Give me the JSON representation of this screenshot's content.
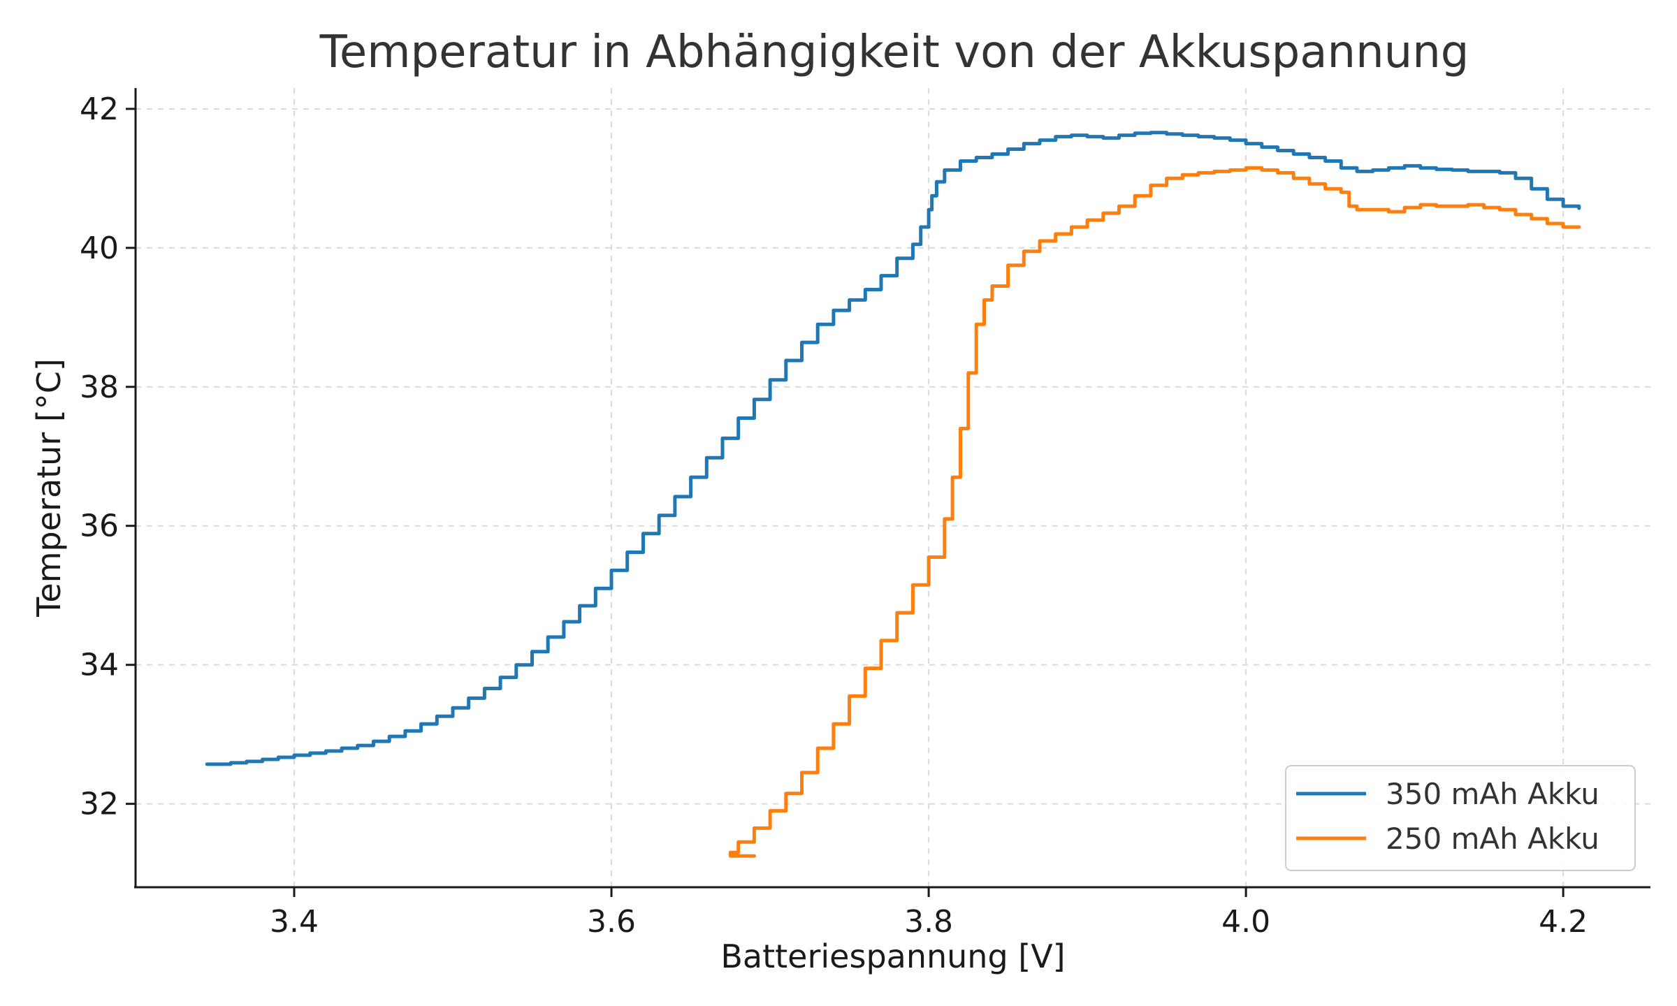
{
  "chart_data": {
    "type": "line",
    "title": "Temperatur in Abhängigkeit von der Akkuspannung",
    "xlabel": "Batteriespannung [V]",
    "ylabel": "Temperatur [°C]",
    "xlim": [
      3.3,
      4.255
    ],
    "ylim": [
      30.8,
      42.3
    ],
    "xticks": [
      3.4,
      3.6,
      3.8,
      4.0,
      4.2
    ],
    "xtick_labels": [
      "3.4",
      "3.6",
      "3.8",
      "4.0",
      "4.2"
    ],
    "yticks": [
      32,
      34,
      36,
      38,
      40,
      42
    ],
    "ytick_labels": [
      "32",
      "34",
      "36",
      "38",
      "40",
      "42"
    ],
    "grid": true,
    "legend_position": "bottom-right",
    "series": [
      {
        "name": "350 mAh Akku",
        "color": "#1f77b4",
        "x": [
          3.345,
          3.36,
          3.37,
          3.38,
          3.39,
          3.4,
          3.41,
          3.42,
          3.43,
          3.44,
          3.45,
          3.46,
          3.47,
          3.48,
          3.49,
          3.5,
          3.51,
          3.52,
          3.53,
          3.54,
          3.55,
          3.56,
          3.57,
          3.58,
          3.59,
          3.6,
          3.61,
          3.62,
          3.63,
          3.64,
          3.65,
          3.66,
          3.67,
          3.68,
          3.69,
          3.7,
          3.71,
          3.72,
          3.73,
          3.74,
          3.75,
          3.76,
          3.77,
          3.78,
          3.79,
          3.795,
          3.8,
          3.802,
          3.805,
          3.81,
          3.82,
          3.83,
          3.84,
          3.85,
          3.86,
          3.87,
          3.88,
          3.89,
          3.9,
          3.91,
          3.92,
          3.93,
          3.94,
          3.95,
          3.96,
          3.97,
          3.98,
          3.99,
          4.0,
          4.01,
          4.02,
          4.03,
          4.04,
          4.05,
          4.06,
          4.07,
          4.08,
          4.09,
          4.1,
          4.11,
          4.12,
          4.13,
          4.14,
          4.15,
          4.16,
          4.17,
          4.18,
          4.19,
          4.2,
          4.21
        ],
        "y": [
          32.57,
          32.59,
          32.61,
          32.64,
          32.67,
          32.7,
          32.73,
          32.76,
          32.8,
          32.84,
          32.9,
          32.97,
          33.05,
          33.15,
          33.26,
          33.38,
          33.52,
          33.66,
          33.82,
          34.0,
          34.19,
          34.4,
          34.62,
          34.85,
          35.1,
          35.36,
          35.62,
          35.89,
          36.15,
          36.42,
          36.7,
          36.98,
          37.26,
          37.55,
          37.82,
          38.1,
          38.38,
          38.64,
          38.9,
          39.1,
          39.25,
          39.4,
          39.6,
          39.85,
          40.05,
          40.3,
          40.55,
          40.75,
          40.95,
          41.12,
          41.25,
          41.3,
          41.35,
          41.42,
          41.5,
          41.55,
          41.6,
          41.62,
          41.6,
          41.58,
          41.62,
          41.65,
          41.66,
          41.64,
          41.62,
          41.6,
          41.58,
          41.55,
          41.5,
          41.45,
          41.4,
          41.35,
          41.3,
          41.25,
          41.15,
          41.1,
          41.12,
          41.15,
          41.18,
          41.15,
          41.13,
          41.12,
          41.1,
          41.1,
          41.08,
          41.0,
          40.85,
          40.7,
          40.6,
          40.57
        ]
      },
      {
        "name": "250 mAh Akku",
        "color": "#ff7f0e",
        "x": [
          3.69,
          3.675,
          3.68,
          3.69,
          3.7,
          3.71,
          3.72,
          3.73,
          3.74,
          3.75,
          3.76,
          3.77,
          3.78,
          3.79,
          3.8,
          3.81,
          3.815,
          3.82,
          3.825,
          3.83,
          3.835,
          3.84,
          3.85,
          3.86,
          3.87,
          3.88,
          3.89,
          3.9,
          3.91,
          3.92,
          3.93,
          3.94,
          3.95,
          3.96,
          3.97,
          3.98,
          3.99,
          4.0,
          4.01,
          4.02,
          4.03,
          4.04,
          4.05,
          4.06,
          4.065,
          4.07,
          4.08,
          4.09,
          4.1,
          4.11,
          4.12,
          4.13,
          4.14,
          4.15,
          4.16,
          4.17,
          4.18,
          4.19,
          4.2,
          4.21
        ],
        "y": [
          31.25,
          31.3,
          31.45,
          31.65,
          31.9,
          32.15,
          32.45,
          32.8,
          33.15,
          33.55,
          33.95,
          34.35,
          34.75,
          35.15,
          35.55,
          36.1,
          36.7,
          37.4,
          38.2,
          38.9,
          39.25,
          39.45,
          39.75,
          39.95,
          40.1,
          40.2,
          40.3,
          40.4,
          40.5,
          40.6,
          40.75,
          40.9,
          41.0,
          41.05,
          41.08,
          41.1,
          41.12,
          41.15,
          41.12,
          41.08,
          41.0,
          40.92,
          40.85,
          40.8,
          40.6,
          40.55,
          40.55,
          40.52,
          40.58,
          40.62,
          40.6,
          40.6,
          40.62,
          40.58,
          40.55,
          40.48,
          40.42,
          40.35,
          40.3,
          40.3
        ]
      }
    ]
  }
}
